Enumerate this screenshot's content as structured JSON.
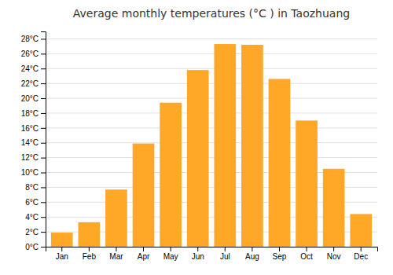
{
  "chart_data": {
    "type": "bar",
    "title": "Average monthly temperatures (°C ) in Taozhuang",
    "categories": [
      "Jan",
      "Feb",
      "Mar",
      "Apr",
      "May",
      "Jun",
      "Jul",
      "Aug",
      "Sep",
      "Oct",
      "Nov",
      "Dec"
    ],
    "values": [
      1.9,
      3.3,
      7.7,
      13.9,
      19.4,
      23.8,
      27.3,
      27.2,
      22.6,
      17.0,
      10.5,
      4.4
    ],
    "color": "#FFA726",
    "ylim": [
      0,
      29
    ],
    "yticks": [
      {
        "value": 0,
        "label": "0°C"
      },
      {
        "value": 2,
        "label": "2°C"
      },
      {
        "value": 4,
        "label": "4°C"
      },
      {
        "value": 6,
        "label": "6°C"
      },
      {
        "value": 8,
        "label": "8°C"
      },
      {
        "value": 10,
        "label": "10°C"
      },
      {
        "value": 12,
        "label": "12°C"
      },
      {
        "value": 14,
        "label": "14°C"
      },
      {
        "value": 16,
        "label": "16°C"
      },
      {
        "value": 18,
        "label": "18°C"
      },
      {
        "value": 20,
        "label": "20°C"
      },
      {
        "value": 22,
        "label": "22°C"
      },
      {
        "value": 24,
        "label": "24°C"
      },
      {
        "value": 26,
        "label": "26°C"
      },
      {
        "value": 28,
        "label": "28°C"
      }
    ],
    "grid": true
  }
}
